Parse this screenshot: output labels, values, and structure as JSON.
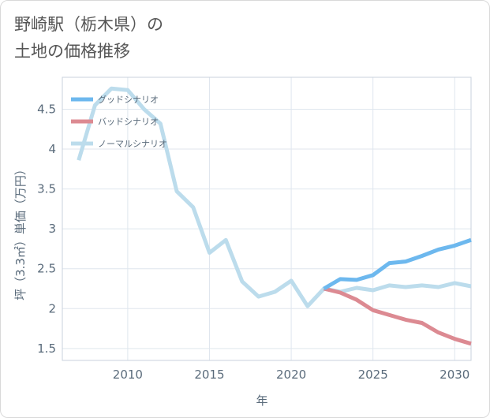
{
  "chart_data": {
    "type": "line",
    "title_line1": "野崎駅（栃木県）の",
    "title_line2": "土地の価格推移",
    "xlabel": "年",
    "ylabel": "坪（3.3㎡）単価（万円）",
    "xlim": [
      2006,
      2031
    ],
    "ylim": [
      1.35,
      4.9
    ],
    "x_ticks": [
      2010,
      2015,
      2020,
      2025,
      2030
    ],
    "y_ticks": [
      1.5,
      2,
      2.5,
      3,
      3.5,
      4,
      4.5
    ],
    "legend_position": "top-left",
    "series": [
      {
        "name": "グッドシナリオ",
        "color": "#6db8ee",
        "x": [
          2022,
          2023,
          2024,
          2025,
          2026,
          2027,
          2028,
          2029,
          2030,
          2031
        ],
        "values": [
          2.25,
          2.37,
          2.36,
          2.42,
          2.57,
          2.59,
          2.66,
          2.74,
          2.79,
          2.86
        ]
      },
      {
        "name": "バッドシナリオ",
        "color": "#dc8a92",
        "x": [
          2022,
          2023,
          2024,
          2025,
          2026,
          2027,
          2028,
          2029,
          2030,
          2031
        ],
        "values": [
          2.25,
          2.2,
          2.11,
          1.98,
          1.92,
          1.86,
          1.82,
          1.7,
          1.62,
          1.56
        ]
      },
      {
        "name": "ノーマルシナリオ",
        "color": "#bcdcec",
        "x": [
          2007,
          2008,
          2009,
          2010,
          2011,
          2012,
          2013,
          2014,
          2015,
          2016,
          2017,
          2018,
          2019,
          2020,
          2021,
          2022,
          2023,
          2024,
          2025,
          2026,
          2027,
          2028,
          2029,
          2030,
          2031
        ],
        "values": [
          3.86,
          4.55,
          4.76,
          4.74,
          4.5,
          4.32,
          3.47,
          3.27,
          2.7,
          2.86,
          2.34,
          2.15,
          2.21,
          2.35,
          2.03,
          2.25,
          2.21,
          2.26,
          2.23,
          2.29,
          2.27,
          2.29,
          2.27,
          2.32,
          2.28
        ]
      }
    ]
  }
}
